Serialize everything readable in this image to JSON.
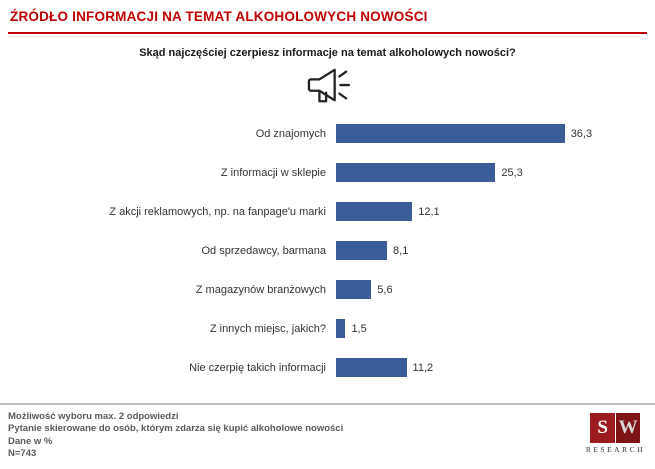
{
  "header": {
    "title": "ŹRÓDŁO INFORMACJI NA TEMAT ALKOHOLOWYCH NOWOŚCI"
  },
  "question": "Skąd najczęściej czerpiesz informacje na temat alkoholowych nowości?",
  "chart_data": {
    "type": "bar",
    "orientation": "horizontal",
    "title": "Skąd najczęściej czerpiesz informacje na temat alkoholowych nowości?",
    "categories": [
      "Od znajomych",
      "Z informacji w sklepie",
      "Z akcji reklamowych, np. na fanpage'u marki",
      "Od sprzedawcy, barmana",
      "Z magazynów branżowych",
      "Z innych miejsc, jakich?",
      "Nie czerpię takich informacji"
    ],
    "values": [
      36.3,
      25.3,
      12.1,
      8.1,
      5.6,
      1.5,
      11.2
    ],
    "value_labels": [
      "36,3",
      "25,3",
      "12,1",
      "8,1",
      "5,6",
      "1,5",
      "11,2"
    ],
    "xlabel": "",
    "ylabel": "",
    "xlim": [
      0,
      40
    ],
    "grid": false,
    "legend": false,
    "bar_color": "#3B5D97",
    "unit": "%"
  },
  "icons": {
    "megaphone": "megaphone-icon"
  },
  "footer": {
    "lines": [
      "Możliwość wyboru max. 2 odpowiedzi",
      "Pytanie skierowane do osób, którym zdarza się kupić alkoholowe nowości",
      "Dane w %",
      "N=743"
    ],
    "logo": {
      "letter_s": "S",
      "letter_w": "W",
      "caption": "RESEARCH"
    }
  },
  "colors": {
    "title_red": "#C00000",
    "bar_blue": "#3B5D97",
    "footer_gray": "#595959",
    "logo_red": "#9B1B1E"
  }
}
